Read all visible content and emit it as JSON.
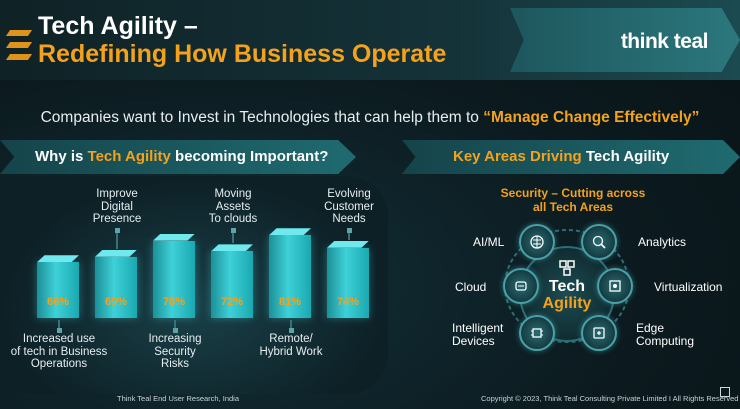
{
  "header": {
    "title_line1": "Tech Agility –",
    "title_line2": "Redefining How Business Operate",
    "brand": "think teal"
  },
  "subtitle": {
    "text": "Companies want to Invest in Technologies that can help them to ",
    "highlight": "“Manage Change Effectively”"
  },
  "left_section": {
    "heading_prefix": "Why is ",
    "heading_highlight": "Tech Agility",
    "heading_suffix": " becoming Important?"
  },
  "right_section": {
    "heading_prefix": "Key Areas Driving ",
    "heading_highlight": "Tech Agility"
  },
  "chart_data": {
    "type": "bar",
    "categories": [
      "Increased use of tech in Business Operations",
      "Improve Digital Presence",
      "Increasing Security Risks",
      "Moving Assets To clouds",
      "Remote/ Hybrid Work",
      "Evolving Customer Needs"
    ],
    "values": [
      66,
      69,
      78,
      72,
      81,
      74
    ],
    "value_labels": [
      "66%",
      "69%",
      "78%",
      "72%",
      "81%",
      "74%"
    ]
  },
  "bar_labels": [
    {
      "lines": [
        "Increased use",
        "of tech in Business",
        "Operations"
      ]
    },
    {
      "lines": [
        "Improve",
        "Digital",
        "Presence"
      ]
    },
    {
      "lines": [
        "Increasing",
        "Security",
        "Risks"
      ]
    },
    {
      "lines": [
        "Moving",
        "Assets",
        "To clouds"
      ]
    },
    {
      "lines": [
        "Remote/",
        "Hybrid Work"
      ]
    },
    {
      "lines": [
        "Evolving",
        "Customer",
        "Needs"
      ]
    }
  ],
  "key_areas": {
    "heading_line1": "Security – Cutting across",
    "heading_line2": "all Tech Areas",
    "center_line1": "Tech",
    "center_line2": "Agility",
    "nodes": [
      {
        "label": "AI/ML",
        "icon": "brain-icon"
      },
      {
        "label": "Analytics",
        "icon": "magnifier-chart-icon"
      },
      {
        "label": "Cloud",
        "icon": "cloud-server-icon"
      },
      {
        "label": "Virtualization",
        "icon": "virtual-cube-icon"
      },
      {
        "label": "Intelligent Devices",
        "label_line1": "Intelligent",
        "label_line2": "Devices",
        "icon": "device-chip-icon"
      },
      {
        "label": "Edge Computing",
        "label_line1": "Edge",
        "label_line2": "Computing",
        "icon": "edge-chip-icon"
      }
    ]
  },
  "footer": {
    "left": "Think Teal End User Research, India",
    "right": "Copyright © 2023, Think Teal Consulting Private Limited I All Rights Reserved"
  },
  "colors": {
    "accent": "#f4a21c",
    "teal": "#3ed1d8",
    "background": "#0c1b20"
  }
}
